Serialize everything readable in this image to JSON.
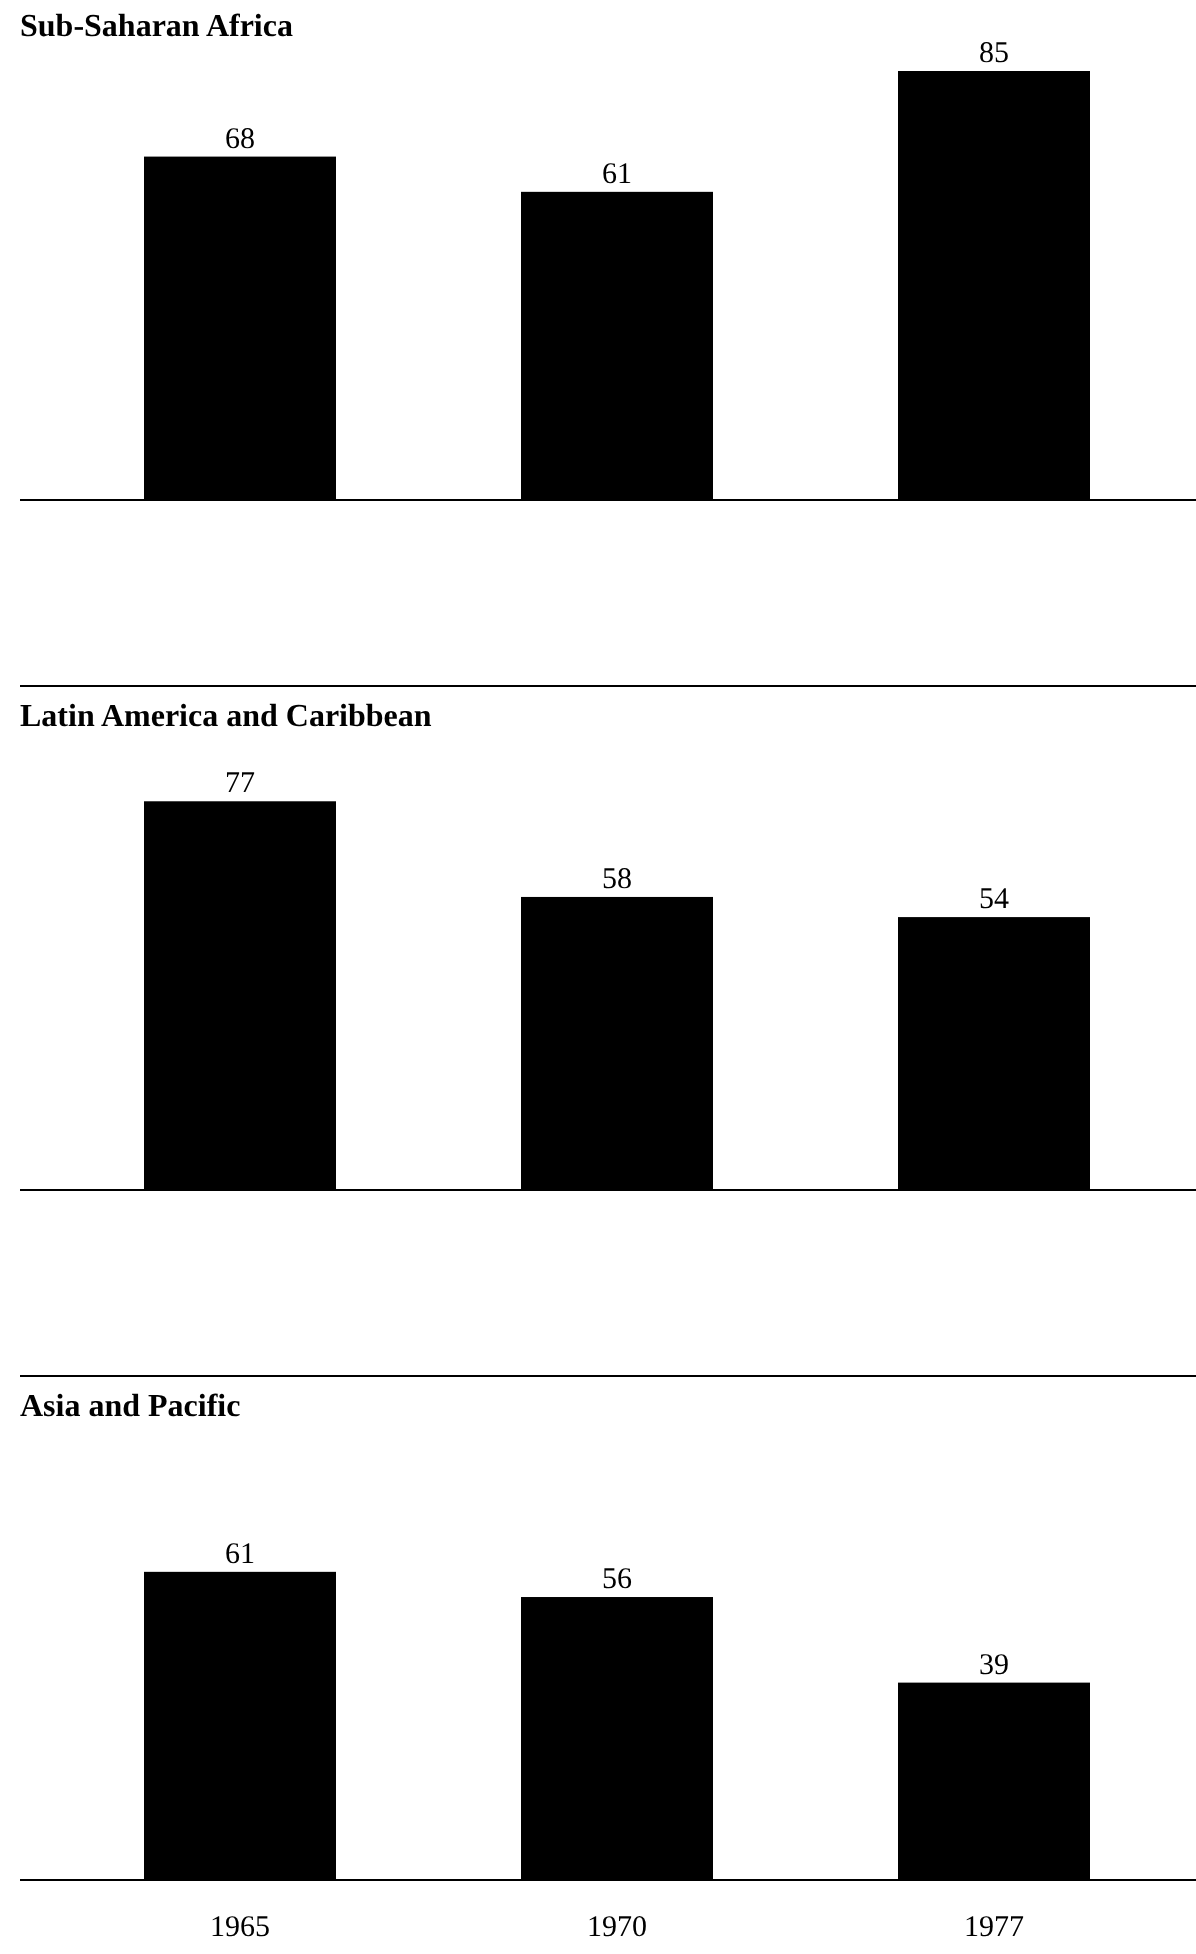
{
  "chart_data": [
    {
      "type": "bar",
      "title": "Sub-Saharan Africa",
      "categories": [
        null,
        null,
        null
      ],
      "values": [
        68,
        61,
        85
      ],
      "color": "#000000",
      "data_labels": true
    },
    {
      "type": "bar",
      "title": "Latin America and Caribbean",
      "categories": [
        null,
        null,
        null
      ],
      "values": [
        77,
        58,
        54
      ],
      "color": "#000000",
      "data_labels": true
    },
    {
      "type": "bar",
      "title": "Asia and Pacific",
      "categories": [
        "1965",
        "1970",
        "1977"
      ],
      "values": [
        61,
        56,
        39
      ],
      "color": "#000000",
      "data_labels": true
    }
  ]
}
